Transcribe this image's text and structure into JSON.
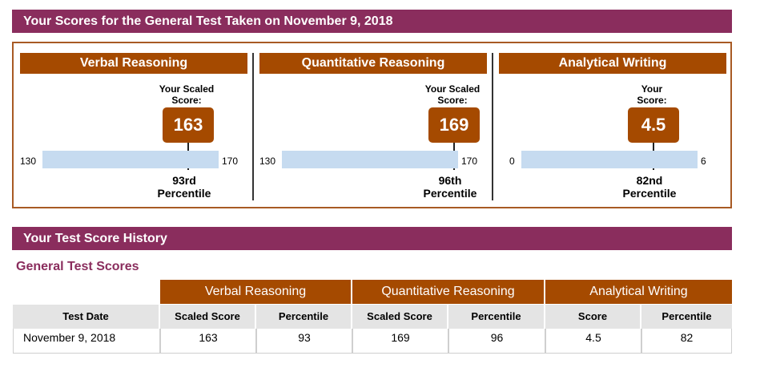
{
  "header": {
    "title": "Your Scores for the General Test Taken on November 9, 2018"
  },
  "sections": [
    {
      "name": "Verbal Reasoning",
      "caption_1": "Your Scaled",
      "caption_2": "Score:",
      "score": "163",
      "min": "130",
      "max": "170",
      "score_fraction": 0.825,
      "percentile_1": "93rd",
      "percentile_2": "Percentile"
    },
    {
      "name": "Quantitative Reasoning",
      "caption_1": "Your Scaled",
      "caption_2": "Score:",
      "score": "169",
      "min": "130",
      "max": "170",
      "score_fraction": 0.975,
      "percentile_1": "96th",
      "percentile_2": "Percentile"
    },
    {
      "name": "Analytical Writing",
      "caption_1": "Your",
      "caption_2": "Score:",
      "score": "4.5",
      "min": "0",
      "max": "6",
      "score_fraction": 0.75,
      "percentile_1": "82nd",
      "percentile_2": "Percentile"
    }
  ],
  "history": {
    "title": "Your Test Score History",
    "subtitle": "General Test Scores",
    "groups": [
      "Verbal Reasoning",
      "Quantitative Reasoning",
      "Analytical Writing"
    ],
    "columns": [
      "Test Date",
      "Scaled Score",
      "Percentile",
      "Scaled Score",
      "Percentile",
      "Score",
      "Percentile"
    ],
    "rows": [
      {
        "cells": [
          "November 9, 2018",
          "163",
          "93",
          "169",
          "96",
          "4.5",
          "82"
        ]
      }
    ]
  },
  "colors": {
    "band": "#8a2d5d",
    "accent": "#a54a00",
    "bar": "#c6dbf0"
  }
}
